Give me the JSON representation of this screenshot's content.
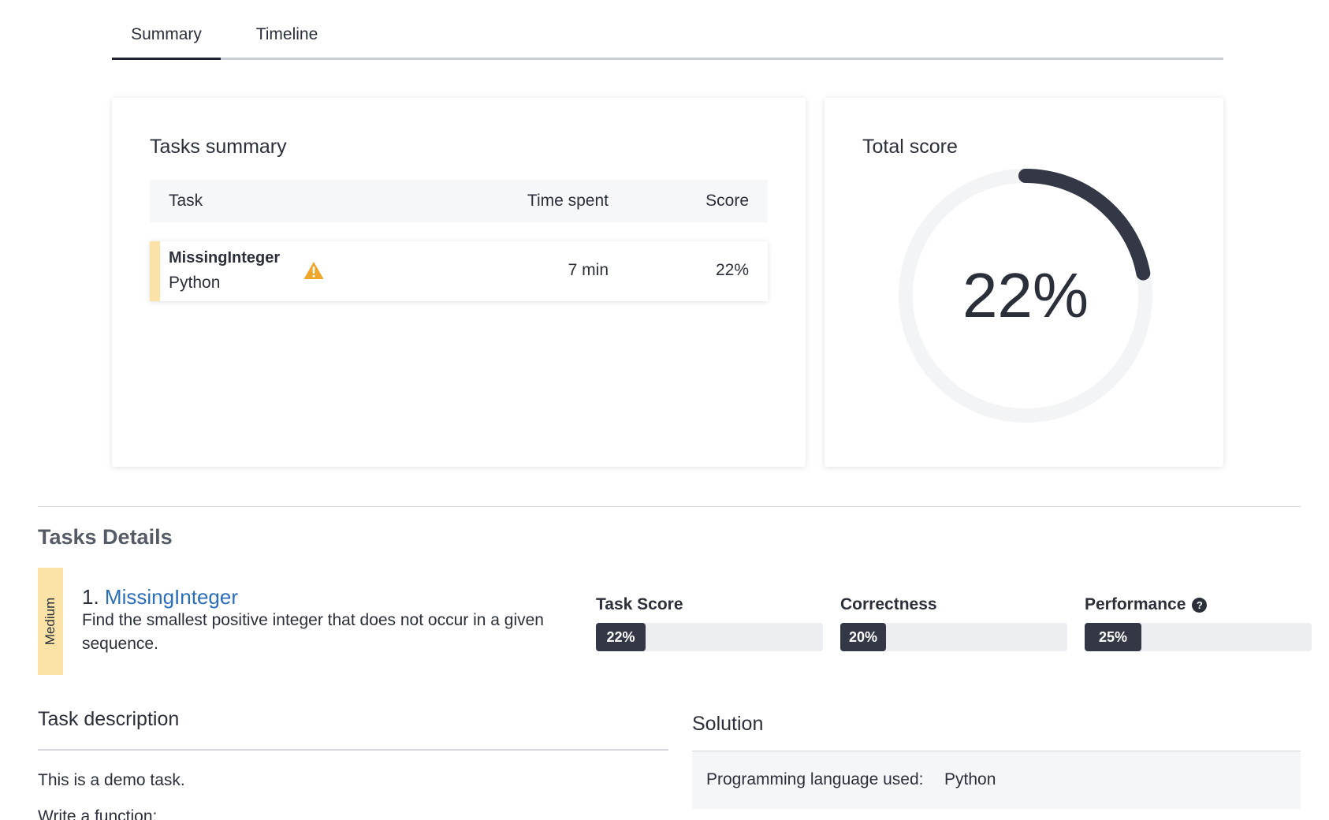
{
  "tabs": [
    {
      "label": "Summary",
      "active": true
    },
    {
      "label": "Timeline",
      "active": false
    }
  ],
  "tasks_summary": {
    "title": "Tasks summary",
    "columns": {
      "task": "Task",
      "time": "Time spent",
      "score": "Score"
    },
    "rows": [
      {
        "name": "MissingInteger",
        "language": "Python",
        "warning_icon": "warning-triangle-icon",
        "time": "7 min",
        "score": "22%"
      }
    ]
  },
  "total_score": {
    "title": "Total score",
    "value_label": "22%",
    "value_fraction": 0.22,
    "colors": {
      "arc": "#343846",
      "track": "#f3f4f6"
    }
  },
  "details": {
    "title": "Tasks Details",
    "difficulty": "Medium",
    "task_number": "1.",
    "task_name": "MissingInteger",
    "task_description": "Find the smallest positive integer that does not occur in a given sequence.",
    "metrics": [
      {
        "label": "Task Score",
        "value": "22%",
        "fraction": 0.22,
        "help": false
      },
      {
        "label": "Correctness",
        "value": "20%",
        "fraction": 0.2,
        "help": false
      },
      {
        "label": "Performance",
        "value": "25%",
        "fraction": 0.25,
        "help": true
      }
    ]
  },
  "task_description_section": {
    "title": "Task description",
    "lines": [
      "This is a demo task.",
      "Write a function:"
    ]
  },
  "solution": {
    "title": "Solution",
    "label": "Programming language used:",
    "value": "Python"
  },
  "colors": {
    "accent_link": "#2a6ebb",
    "difficulty_badge": "#fbe3a7",
    "warning": "#f0a52b",
    "bar_fill": "#343846"
  }
}
